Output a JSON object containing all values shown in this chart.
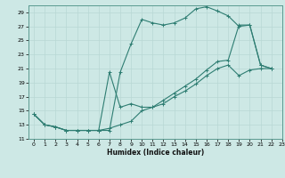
{
  "xlabel": "Humidex (Indice chaleur)",
  "bg_color": "#cde8e5",
  "line_color": "#2e7d72",
  "grid_color": "#b8d8d4",
  "xlim": [
    -0.5,
    23
  ],
  "ylim": [
    11,
    30
  ],
  "xticks": [
    0,
    1,
    2,
    3,
    4,
    5,
    6,
    7,
    8,
    9,
    10,
    11,
    12,
    13,
    14,
    15,
    16,
    17,
    18,
    19,
    20,
    21,
    22,
    23
  ],
  "yticks": [
    11,
    13,
    15,
    17,
    19,
    21,
    23,
    25,
    27,
    29
  ],
  "line1_x": [
    0,
    1,
    2,
    3,
    4,
    5,
    6,
    7,
    8,
    9,
    10,
    11,
    12,
    13,
    14,
    15,
    16,
    17,
    18,
    19,
    20,
    21,
    22
  ],
  "line1_y": [
    14.5,
    13.0,
    12.7,
    12.2,
    12.2,
    12.2,
    12.2,
    12.2,
    20.5,
    24.5,
    28.0,
    27.5,
    27.2,
    27.5,
    28.2,
    29.5,
    29.8,
    29.2,
    28.5,
    27.0,
    27.2,
    21.5,
    21.0
  ],
  "line2_x": [
    0,
    1,
    2,
    3,
    4,
    5,
    6,
    7,
    8,
    9,
    10,
    11,
    12,
    13,
    14,
    15,
    16,
    17,
    18,
    19,
    20,
    21,
    22
  ],
  "line2_y": [
    14.5,
    13.0,
    12.7,
    12.2,
    12.2,
    12.2,
    12.2,
    20.5,
    15.5,
    16.0,
    15.5,
    15.5,
    16.5,
    17.5,
    18.5,
    19.5,
    20.8,
    22.0,
    22.2,
    27.2,
    27.2,
    21.5,
    21.0
  ],
  "line3_x": [
    0,
    1,
    2,
    3,
    4,
    5,
    6,
    7,
    8,
    9,
    10,
    11,
    12,
    13,
    14,
    15,
    16,
    17,
    18,
    19,
    20,
    21,
    22
  ],
  "line3_y": [
    14.5,
    13.0,
    12.7,
    12.2,
    12.2,
    12.2,
    12.2,
    12.5,
    13.0,
    13.5,
    15.0,
    15.5,
    16.0,
    17.0,
    17.8,
    18.8,
    20.0,
    21.0,
    21.5,
    20.0,
    20.8,
    21.0,
    21.0
  ]
}
